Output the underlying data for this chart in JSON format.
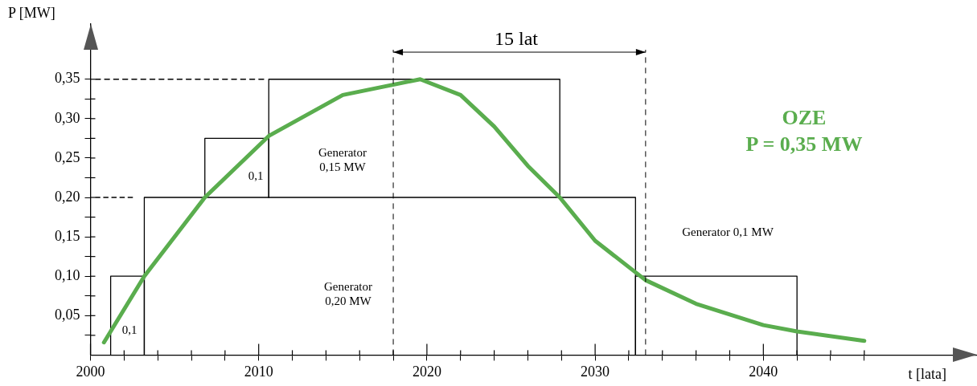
{
  "chart_data": {
    "type": "line",
    "xlabel": "t [lata]",
    "ylabel": "P [MW]",
    "xlim": [
      2000,
      2052.7
    ],
    "ylim": [
      0,
      0.42
    ],
    "xticks": [
      2000,
      {
        "value": 2002,
        "label": null
      },
      {
        "value": 2004,
        "label": null
      },
      {
        "value": 2006,
        "label": null
      },
      {
        "value": 2008,
        "label": null
      },
      2010,
      {
        "value": 2012,
        "label": null
      },
      {
        "value": 2014,
        "label": null
      },
      {
        "value": 2016,
        "label": null
      },
      {
        "value": 2018,
        "label": null
      },
      2020,
      {
        "value": 2022,
        "label": null
      },
      {
        "value": 2024,
        "label": null
      },
      {
        "value": 2026,
        "label": null
      },
      {
        "value": 2028,
        "label": null
      },
      2030,
      {
        "value": 2032,
        "label": null
      },
      {
        "value": 2034,
        "label": null
      },
      {
        "value": 2036,
        "label": null
      },
      {
        "value": 2038,
        "label": null
      },
      2040,
      {
        "value": 2042,
        "label": null
      },
      {
        "value": 2044,
        "label": null
      },
      {
        "value": 2046,
        "label": null
      }
    ],
    "yticks": [
      {
        "value": 0.025,
        "label": null
      },
      {
        "value": 0.05,
        "label": "0,05"
      },
      {
        "value": 0.075,
        "label": null
      },
      {
        "value": 0.1,
        "label": "0,10"
      },
      {
        "value": 0.125,
        "label": null
      },
      {
        "value": 0.15,
        "label": "0,15"
      },
      {
        "value": 0.175,
        "label": null
      },
      {
        "value": 0.2,
        "label": "0,20"
      },
      {
        "value": 0.225,
        "label": null
      },
      {
        "value": 0.25,
        "label": "0,25"
      },
      {
        "value": 0.275,
        "label": null
      },
      {
        "value": 0.3,
        "label": "0,30"
      },
      {
        "value": 0.325,
        "label": null
      },
      {
        "value": 0.35,
        "label": "0,35"
      }
    ],
    "grid": false,
    "legend": false,
    "marker": "none",
    "series": [
      {
        "color": "#5aad4e",
        "x": [
          2000.8,
          2003.2,
          2006.8,
          2010.6,
          2015,
          2019.6,
          2022,
          2024,
          2026,
          2027.9,
          2030,
          2033,
          2036,
          2040,
          2042,
          2046
        ],
        "values": [
          0.016,
          0.1,
          0.2,
          0.278,
          0.33,
          0.35,
          0.33,
          0.29,
          0.24,
          0.2,
          0.145,
          0.095,
          0.065,
          0.038,
          0.03,
          0.018
        ]
      },
      {
        "color": "#000000",
        "x": [
          2001.2,
          2001.2,
          2003.2,
          2003.2
        ],
        "values": [
          0,
          0.1,
          0.1,
          0
        ]
      },
      {
        "color": "#000000",
        "x": [
          2003.2,
          2003.2,
          2032.4,
          2032.4
        ],
        "values": [
          0,
          0.2,
          0.2,
          0
        ]
      },
      {
        "color": "#000000",
        "x": [
          2006.8,
          2006.8,
          2010.6,
          2010.6
        ],
        "values": [
          0.2,
          0.275,
          0.275,
          0.2
        ]
      },
      {
        "color": "#000000",
        "x": [
          2010.6,
          2010.6,
          2027.9,
          2027.9
        ],
        "values": [
          0.2,
          0.35,
          0.35,
          0.2
        ]
      },
      {
        "color": "#000000",
        "x": [
          2032.4,
          2032.4,
          2042,
          2042
        ],
        "values": [
          0,
          0.1,
          0.1,
          0
        ]
      },
      {
        "color": "#000000",
        "line_style": "dashed",
        "x": [
          2000.3,
          2010.3
        ],
        "values": [
          0.35,
          0.35
        ]
      },
      {
        "color": "#000000",
        "line_style": "dashed",
        "x": [
          2000.3,
          2002.5
        ],
        "values": [
          0.2,
          0.2
        ]
      }
    ],
    "ref_lines": [
      {
        "axis": "x",
        "value": 2018,
        "line_style": "dashed",
        "color": "#000000"
      },
      {
        "axis": "x",
        "value": 2033,
        "line_style": "dashed",
        "color": "#000000"
      }
    ],
    "annotations": [
      "15 lat",
      "0,1",
      "0,1",
      "Generator\n0,15 MW",
      "Generator\n0,20 MW",
      "Generator 0,1 MW",
      "OZE\nP = 0,35 MW"
    ]
  }
}
